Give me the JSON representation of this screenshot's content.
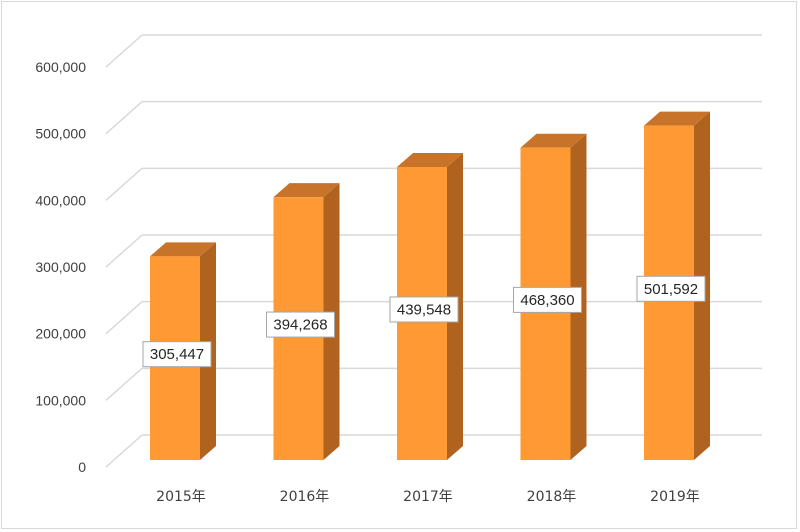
{
  "chart_data": {
    "type": "bar",
    "categories": [
      "2015年",
      "2016年",
      "2017年",
      "2018年",
      "2019年"
    ],
    "values": [
      305447,
      394268,
      439548,
      468360,
      501592
    ],
    "data_labels": [
      "305,447",
      "394,268",
      "439,548",
      "468,360",
      "501,592"
    ],
    "y_ticks": [
      "0",
      "100,000",
      "200,000",
      "300,000",
      "400,000",
      "500,000",
      "600,000"
    ],
    "ylim": [
      0,
      600000
    ],
    "grid": true,
    "style": "3d-column",
    "colors": {
      "front": "#FF9933",
      "side": "#B0621F",
      "top": "#C8732A",
      "gridline": "#d9d9d9",
      "axis_text": "#404040"
    }
  }
}
